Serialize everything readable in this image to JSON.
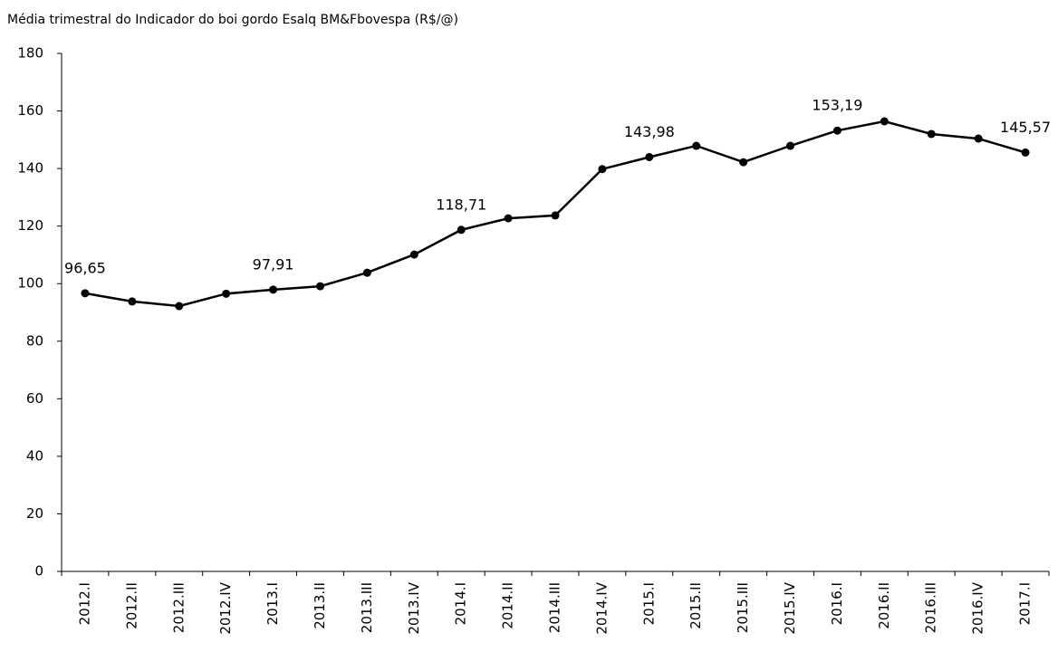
{
  "chart_data": {
    "type": "line",
    "title": "Média trimestral do Indicador do boi gordo Esalq BM&Fbovespa (R$/@)",
    "categories": [
      "2012.I",
      "2012.II",
      "2012.III",
      "2012.IV",
      "2013.I",
      "2013.II",
      "2013.III",
      "2013.IV",
      "2014.I",
      "2014.II",
      "2014.III",
      "2014.IV",
      "2015.I",
      "2015.II",
      "2015.III",
      "2015.IV",
      "2016.I",
      "2016.II",
      "2016.III",
      "2016.IV",
      "2017.I"
    ],
    "values": [
      96.65,
      93.8,
      92.2,
      96.5,
      97.91,
      99.1,
      103.8,
      110.1,
      118.71,
      122.7,
      123.7,
      139.8,
      143.98,
      147.9,
      142.2,
      147.9,
      153.19,
      156.4,
      152.0,
      150.4,
      145.57
    ],
    "value_labels": [
      "96,65",
      null,
      null,
      null,
      "97,91",
      null,
      null,
      null,
      "118,71",
      null,
      null,
      null,
      "143,98",
      null,
      null,
      null,
      "153,19",
      null,
      null,
      null,
      "145,57"
    ],
    "color": "#000000",
    "ylim": [
      0,
      180
    ],
    "yticks": [
      0,
      20,
      40,
      60,
      80,
      100,
      120,
      140,
      160,
      180
    ],
    "grid": false
  }
}
